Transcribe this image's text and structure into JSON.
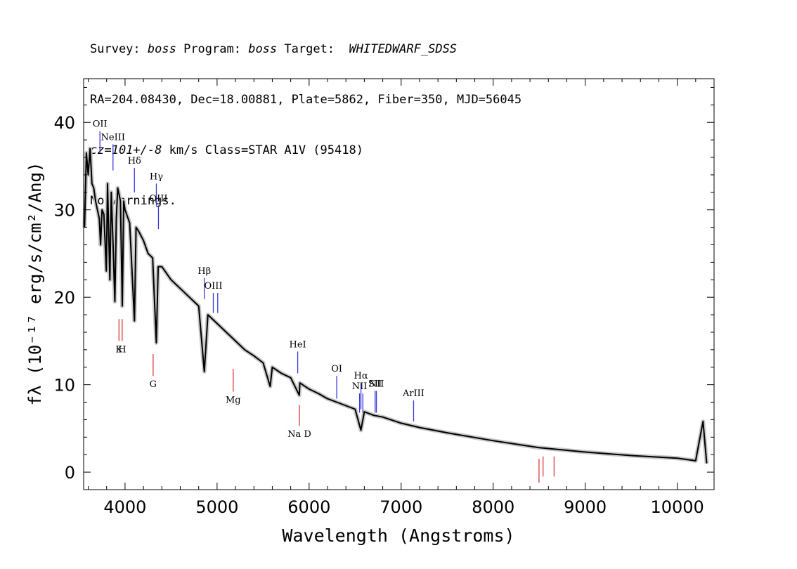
{
  "header": {
    "line1": {
      "a": "Survey: ",
      "b": "boss",
      "c": " Program: ",
      "d": "boss",
      "e": " Target:  ",
      "f": "WHITEDWARF_SDSS"
    },
    "line2": "RA=204.08430, Dec=18.00881, Plate=5862, Fiber=350, MJD=56045",
    "line3": {
      "a": "cz=101+/-8",
      "b": " km/s Class=STAR A1V (95418)"
    },
    "line4": "No warnings."
  },
  "chart_data": {
    "type": "line",
    "xlabel": "Wavelength (Angstroms)",
    "ylabel": "fλ (10⁻¹⁷ erg/s/cm²/Ang)",
    "xlim": [
      3550,
      10400
    ],
    "ylim": [
      -2,
      45
    ],
    "xticks": [
      4000,
      5000,
      6000,
      7000,
      8000,
      9000,
      10000
    ],
    "yticks": [
      0,
      10,
      20,
      30,
      40
    ],
    "grid": false,
    "series": [
      {
        "color": "#000000",
        "x": [
          3560,
          3580,
          3600,
          3620,
          3640,
          3660,
          3680,
          3700,
          3720,
          3734,
          3750,
          3770,
          3797,
          3810,
          3835,
          3850,
          3870,
          3889,
          3905,
          3920,
          3950,
          3970,
          3985,
          4000,
          4050,
          4102,
          4120,
          4150,
          4200,
          4250,
          4300,
          4340,
          4360,
          4400,
          4500,
          4600,
          4700,
          4800,
          4861,
          4900,
          5000,
          5100,
          5200,
          5300,
          5400,
          5500,
          5577,
          5600,
          5700,
          5800,
          5893,
          5900,
          6000,
          6100,
          6200,
          6300,
          6400,
          6500,
          6563,
          6600,
          6700,
          6800,
          7000,
          7200,
          7500,
          8000,
          8500,
          9000,
          9500,
          10000,
          10200,
          10280,
          10320
        ],
        "y": [
          28,
          36.5,
          34,
          37,
          33,
          32.5,
          31,
          30,
          29,
          26,
          30,
          29.5,
          23,
          33,
          22,
          32,
          26,
          19.5,
          29,
          32.5,
          31,
          19,
          31,
          30,
          28.5,
          17.3,
          28,
          27.5,
          26.5,
          25,
          24.5,
          14.8,
          23.5,
          23.5,
          22,
          21,
          20,
          19,
          11.5,
          18,
          17,
          16,
          15,
          14,
          13.3,
          12.5,
          9.8,
          12,
          11.3,
          10.8,
          8.8,
          10.2,
          9.5,
          9,
          8.4,
          8,
          7.6,
          7.2,
          4.8,
          6.9,
          6.5,
          6.3,
          5.6,
          5.1,
          4.5,
          3.6,
          2.8,
          2.3,
          1.9,
          1.6,
          1.3,
          5.8,
          1.0
        ]
      }
    ],
    "lines_emission": [
      {
        "label": "OII",
        "x": 3727,
        "y1": 36.5,
        "y2": 39
      },
      {
        "label": "NeIII",
        "x": 3869,
        "y1": 34.5,
        "y2": 37.5
      },
      {
        "label": "Hδ",
        "x": 4102,
        "y1": 32,
        "y2": 34.8
      },
      {
        "label": "Hγ",
        "x": 4340,
        "y1": 30.5,
        "y2": 33
      },
      {
        "label": "OIII",
        "x": 4363,
        "y1": 27.8,
        "y2": 30.5
      },
      {
        "label": "Hβ",
        "x": 4861,
        "y1": 19.8,
        "y2": 22.2
      },
      {
        "label": "OIII",
        "x": 4959,
        "y1": 18.2,
        "y2": 20.5
      },
      {
        "label": "",
        "x": 5007,
        "y1": 18.2,
        "y2": 20.5
      },
      {
        "label": "HeI",
        "x": 5876,
        "y1": 11.3,
        "y2": 13.8
      },
      {
        "label": "OI",
        "x": 6300,
        "y1": 8.4,
        "y2": 11
      },
      {
        "label": "NII",
        "x": 6548,
        "y1": 6.8,
        "y2": 9
      },
      {
        "label": "Hα",
        "x": 6563,
        "y1": 7.2,
        "y2": 10.2
      },
      {
        "label": "",
        "x": 6584,
        "y1": 6.8,
        "y2": 9
      },
      {
        "label": "SII",
        "x": 6717,
        "y1": 6.8,
        "y2": 9.3
      },
      {
        "label": "NII",
        "x": 6731,
        "y1": 6.8,
        "y2": 9.3
      },
      {
        "label": "ArIII",
        "x": 7135,
        "y1": 5.8,
        "y2": 8.2
      }
    ],
    "lines_absorption": [
      {
        "label": "K",
        "x": 3934,
        "y1": 15,
        "y2": 17.5
      },
      {
        "label": "H",
        "x": 3969,
        "y1": 15,
        "y2": 17.5
      },
      {
        "label": "G",
        "x": 4305,
        "y1": 11,
        "y2": 13.5
      },
      {
        "label": "Mg",
        "x": 5175,
        "y1": 9.2,
        "y2": 11.8
      },
      {
        "label": "Na D",
        "x": 5894,
        "y1": 5.3,
        "y2": 7.7
      },
      {
        "label": "",
        "x": 8498,
        "y1": -1.2,
        "y2": 1.5
      },
      {
        "label": "",
        "x": 8542,
        "y1": -0.5,
        "y2": 1.8
      },
      {
        "label": "",
        "x": 8662,
        "y1": -0.5,
        "y2": 1.8
      }
    ],
    "emission_color": "#3b3bd6",
    "absorption_color": "#d83c3c",
    "error_color": "#c8c8c8"
  }
}
